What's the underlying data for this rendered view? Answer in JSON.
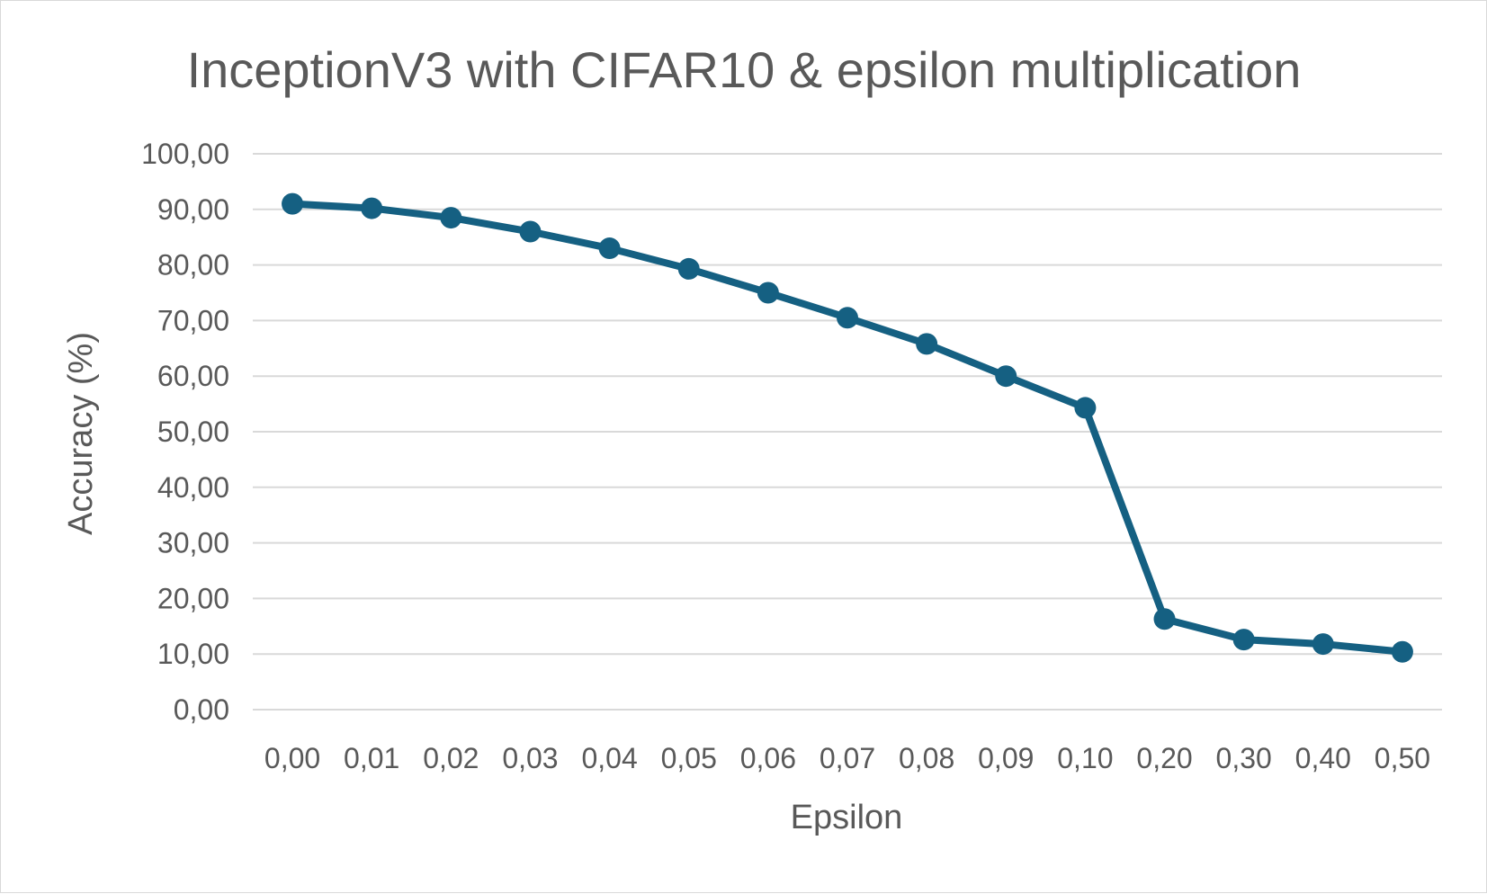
{
  "chart_data": {
    "type": "line",
    "title": "InceptionV3 with CIFAR10 & epsilon multiplication",
    "xlabel": "Epsilon",
    "ylabel": "Accuracy (%)",
    "categories": [
      "0,00",
      "0,01",
      "0,02",
      "0,03",
      "0,04",
      "0,05",
      "0,06",
      "0,07",
      "0,08",
      "0,09",
      "0,10",
      "0,20",
      "0,30",
      "0,40",
      "0,50"
    ],
    "series": [
      {
        "values": [
          91.0,
          90.2,
          88.5,
          86.0,
          83.0,
          79.3,
          75.0,
          70.5,
          65.8,
          60.0,
          54.3,
          16.3,
          12.6,
          11.8,
          10.4
        ]
      }
    ],
    "ylim": [
      0,
      100
    ],
    "yticks": [
      "0,00",
      "10,00",
      "20,00",
      "30,00",
      "40,00",
      "50,00",
      "60,00",
      "70,00",
      "80,00",
      "90,00",
      "100,00"
    ],
    "grid": true,
    "legend": "none",
    "colors": {
      "series": "#156082",
      "gridline": "#d9d9d9",
      "text": "#595959",
      "border": "#d9d9d9"
    }
  }
}
